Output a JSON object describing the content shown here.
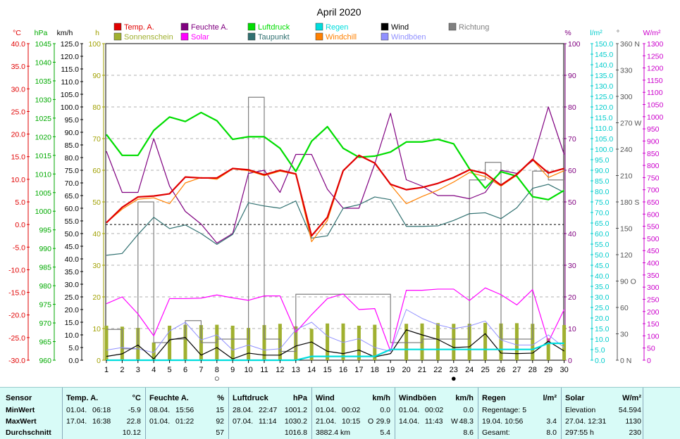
{
  "title": "April 2020",
  "axes": {
    "temp": {
      "unit": "°C",
      "ticks": [
        "40.0",
        "35.0",
        "30.0",
        "25.0",
        "20.0",
        "15.0",
        "10.0",
        "5.0",
        "0.0",
        "-5.0",
        "-10.0",
        "-15.0",
        "-20.0",
        "-25.0",
        "-30.0"
      ],
      "color": "#e00000"
    },
    "hpa": {
      "unit": "hPa",
      "ticks": [
        "1045",
        "1040",
        "1035",
        "1030",
        "1025",
        "1020",
        "1015",
        "1010",
        "1005",
        "1000",
        "995",
        "990",
        "985",
        "980",
        "975",
        "970",
        "965",
        "960"
      ],
      "color": "#00aa00"
    },
    "kmh": {
      "unit": "km/h",
      "ticks": [
        "125.0",
        "120.0",
        "115.0",
        "110.0",
        "105.0",
        "100.0",
        "95.0",
        "90.0",
        "85.0",
        "80.0",
        "75.0",
        "70.0",
        "65.0",
        "60.0",
        "55.0",
        "50.0",
        "45.0",
        "40.0",
        "35.0",
        "30.0",
        "25.0",
        "20.0",
        "15.0",
        "10.0",
        "5.0",
        "0.0"
      ],
      "color": "#000000"
    },
    "h": {
      "unit": "h",
      "ticks": [
        "100",
        "90",
        "80",
        "70",
        "60",
        "50",
        "40",
        "30",
        "20",
        "10",
        "0"
      ],
      "color": "#a0a000"
    },
    "pct": {
      "unit": "%",
      "ticks": [
        "100",
        "90",
        "80",
        "70",
        "60",
        "50",
        "40",
        "30",
        "20",
        "10",
        "0"
      ],
      "color": "#800080"
    },
    "rain": {
      "unit": "l/m²",
      "ticks": [
        "150.0",
        "145.0",
        "140.0",
        "135.0",
        "130.0",
        "125.0",
        "120.0",
        "115.0",
        "110.0",
        "105.0",
        "100.0",
        "95.0",
        "90.0",
        "85.0",
        "80.0",
        "75.0",
        "70.0",
        "65.0",
        "60.0",
        "55.0",
        "50.0",
        "45.0",
        "40.0",
        "35.0",
        "30.0",
        "25.0",
        "20.0",
        "15.0",
        "10.0",
        "5.0",
        "0.0"
      ],
      "color": "#00cccc"
    },
    "deg": {
      "unit": "°",
      "ticks": [
        "360 N",
        "330",
        "300",
        "270 W",
        "240",
        "210",
        "180 S",
        "150",
        "120",
        "90 O",
        "60",
        "30",
        "0 N"
      ],
      "color": "#555555"
    },
    "solar": {
      "unit": "W/m²",
      "ticks": [
        "1300",
        "1250",
        "1200",
        "1150",
        "1100",
        "1050",
        "1000",
        "950",
        "900",
        "850",
        "800",
        "750",
        "700",
        "650",
        "600",
        "550",
        "500",
        "450",
        "400",
        "350",
        "300",
        "250",
        "200",
        "150",
        "100",
        "50",
        "0"
      ],
      "color": "#cc00cc"
    }
  },
  "legend": [
    {
      "label": "Temp. A.",
      "color": "#e00000"
    },
    {
      "label": "Feuchte A.",
      "color": "#800080"
    },
    {
      "label": "Luftdruck",
      "color": "#00dd00"
    },
    {
      "label": "Regen",
      "color": "#00dddd"
    },
    {
      "label": "Wind",
      "color": "#000000"
    },
    {
      "label": "Richtung",
      "color": "#808080"
    },
    {
      "label": "Sonnenschein",
      "color": "#a0b030"
    },
    {
      "label": "Solar",
      "color": "#ff00ff"
    },
    {
      "label": "Taupunkt",
      "color": "#307070"
    },
    {
      "label": "Windchill",
      "color": "#ff8000"
    },
    {
      "label": "Windböen",
      "color": "#9090ff"
    }
  ],
  "chart_data": {
    "type": "line",
    "title": "April 2020",
    "x": [
      1,
      2,
      3,
      4,
      5,
      6,
      7,
      8,
      9,
      10,
      11,
      12,
      13,
      14,
      15,
      16,
      17,
      18,
      19,
      20,
      21,
      22,
      23,
      24,
      25,
      26,
      27,
      28,
      29,
      30
    ],
    "x_ticks": [
      "1",
      "2",
      "3",
      "4",
      "5",
      "6",
      "7",
      "8",
      "9",
      "10",
      "11",
      "12",
      "13",
      "14",
      "15",
      "16",
      "17",
      "18",
      "19",
      "20",
      "21",
      "22",
      "23",
      "24",
      "25",
      "26",
      "27",
      "28",
      "29",
      "30"
    ],
    "moon_markers": [
      {
        "day": 8,
        "symbol": "○"
      },
      {
        "day": 23,
        "symbol": "●"
      }
    ],
    "ylim_temp": [
      -30,
      40
    ],
    "series": [
      {
        "name": "Temp. A.",
        "unit": "°C",
        "color": "#e00000",
        "values": [
          0.4,
          3.8,
          6.1,
          6.3,
          6.8,
          10.5,
          10.3,
          10.3,
          12.4,
          12.1,
          11.0,
          12.0,
          11.2,
          -2.5,
          1.6,
          11.9,
          15.3,
          13.6,
          8.9,
          7.7,
          8.2,
          9.1,
          10.4,
          12.1,
          11.3,
          8.7,
          11.1,
          14.4,
          11.4,
          12.4
        ]
      },
      {
        "name": "Feuchte A.",
        "unit": "%",
        "color": "#800080",
        "values": [
          66,
          53,
          53,
          70,
          55,
          47,
          43,
          37,
          40,
          59,
          60,
          53,
          65,
          65,
          54,
          48,
          48,
          62,
          78,
          57,
          55,
          52,
          52,
          51,
          53,
          60,
          59,
          63,
          80,
          65
        ]
      },
      {
        "name": "Luftdruck",
        "unit": "hPa",
        "color": "#00dd00",
        "values": [
          1020.6,
          1015.0,
          1015.0,
          1021.7,
          1025.3,
          1024.1,
          1026.5,
          1024.3,
          1019.3,
          1020.0,
          1020.0,
          1016.9,
          1010.7,
          1018.8,
          1022.7,
          1016.9,
          1014.5,
          1014.8,
          1015.9,
          1018.6,
          1018.6,
          1019.3,
          1018.1,
          1011.4,
          1006.2,
          1010.6,
          1009.4,
          1003.9,
          1003.1,
          1005.6
        ]
      },
      {
        "name": "Taupunkt",
        "unit": "°C",
        "color": "#307070",
        "values": [
          -6.8,
          -6.4,
          -2.2,
          1.6,
          -0.9,
          -0.1,
          -2.0,
          -4.4,
          -2.2,
          4.8,
          4.1,
          3.6,
          5.2,
          -3.0,
          -2.5,
          3.6,
          4.4,
          6.1,
          5.5,
          -0.4,
          -0.4,
          -0.3,
          0.9,
          2.4,
          2.6,
          1.3,
          3.7,
          8.0,
          8.9,
          7.1
        ]
      },
      {
        "name": "Windchill",
        "unit": "°C",
        "color": "#ff8000",
        "values": [
          0.4,
          3.4,
          5.6,
          5.9,
          4.6,
          9.2,
          10.4,
          10.0,
          12.3,
          11.9,
          10.8,
          11.8,
          11.1,
          -3.8,
          0.9,
          11.8,
          15.3,
          13.5,
          8.8,
          4.6,
          6.2,
          7.6,
          9.4,
          11.5,
          10.6,
          8.5,
          10.9,
          14.3,
          10.4,
          11.9
        ]
      },
      {
        "name": "Wind",
        "unit": "km/h",
        "color": "#000000",
        "values": [
          1.5,
          2.5,
          6.0,
          0.5,
          8.0,
          9.0,
          2.0,
          5.0,
          0.5,
          2.8,
          2.0,
          2.0,
          5.6,
          7.2,
          3.5,
          2.6,
          4.0,
          1.3,
          2.6,
          12.0,
          10.0,
          8.2,
          5.0,
          5.3,
          10.5,
          2.8,
          2.6,
          2.8,
          7.5,
          3.6
        ]
      },
      {
        "name": "Windböen",
        "unit": "km/h",
        "color": "#9090ff",
        "values": [
          4.0,
          5.0,
          4.5,
          3.0,
          11.5,
          15.0,
          8.0,
          10.0,
          4.0,
          6.0,
          4.0,
          4.5,
          12.0,
          15.0,
          9.5,
          7.0,
          8.5,
          5.0,
          3.5,
          20.0,
          16.5,
          14.0,
          12.5,
          13.5,
          15.5,
          8.0,
          6.0,
          6.0,
          10.0,
          5.0
        ]
      },
      {
        "name": "Richtung",
        "unit": "°",
        "color": "#808080",
        "values": [
          35,
          13,
          180,
          20,
          24,
          45,
          20,
          24,
          24,
          299,
          24,
          10,
          75,
          75,
          75,
          75,
          75,
          75,
          20,
          20,
          24,
          24,
          24,
          205,
          225,
          24,
          24,
          215,
          205,
          245
        ]
      },
      {
        "name": "Solar",
        "unit": "W/m²",
        "color": "#ff00ff",
        "values": [
          232,
          260,
          190,
          100,
          253,
          253,
          255,
          268,
          256,
          246,
          264,
          264,
          115,
          187,
          253,
          272,
          208,
          212,
          37,
          287,
          287,
          292,
          292,
          245,
          297,
          269,
          227,
          290,
          75,
          208
        ]
      },
      {
        "name": "Regen",
        "unit": "l/m²",
        "color": "#00dddd",
        "values": [
          0,
          0,
          0,
          0,
          0,
          0,
          0,
          0,
          0,
          0,
          0,
          0,
          0,
          1.8,
          1.8,
          1.8,
          1.8,
          1.8,
          5.1,
          5.1,
          5.1,
          5.1,
          5.1,
          5.1,
          5.1,
          5.1,
          5.1,
          5.1,
          8.0,
          8.0
        ]
      },
      {
        "name": "Sonnenschein",
        "unit": "h",
        "color": "#a0b030",
        "values": [
          10.9,
          10.6,
          10.2,
          5.6,
          10.9,
          11.2,
          11.1,
          11.2,
          10.9,
          10.2,
          11.1,
          11.5,
          10.7,
          9.9,
          11.6,
          11.6,
          10.9,
          11.2,
          0,
          11.5,
          11.6,
          11.7,
          11.5,
          11.5,
          11.8,
          11.6,
          11.7,
          11.5,
          6.9,
          11.1
        ]
      }
    ]
  },
  "stats": {
    "sensor": {
      "header": "Sensor",
      "rows": [
        "MinWert",
        "MaxWert",
        "Durchschnitt"
      ]
    },
    "temp": {
      "header": "Temp. A.",
      "unit": "°C",
      "min_date": "01.04.",
      "min_time": "06:18",
      "min_val": "-5.9",
      "max_date": "17.04.",
      "max_time": "16:38",
      "max_val": "22.8",
      "avg": "10.12"
    },
    "humidity": {
      "header": "Feuchte A.",
      "unit": "%",
      "min_date": "08.04.",
      "min_time": "15:56",
      "min_val": "15",
      "max_date": "01.04.",
      "max_time": "01:22",
      "max_val": "92",
      "avg": "57"
    },
    "pressure": {
      "header": "Luftdruck",
      "unit": "hPa",
      "min_date": "28.04.",
      "min_time": "22:47",
      "min_val": "1001.2",
      "max_date": "07.04.",
      "max_time": "11:14",
      "max_val": "1030.2",
      "avg": "1016.8"
    },
    "wind": {
      "header": "Wind",
      "unit": "km/h",
      "min_date": "01.04.",
      "min_time": "00:02",
      "min_val": "0.0",
      "max_date": "21.04.",
      "max_time": "10:15",
      "max_dir": "O",
      "max_val": "29.9",
      "distance": "3882.4 km",
      "avg": "5.4"
    },
    "gust": {
      "header": "Windböen",
      "unit": "km/h",
      "min_date": "01.04.",
      "min_time": "00:02",
      "min_val": "0.0",
      "max_date": "14.04.",
      "max_time": "11:43",
      "max_dir": "W",
      "max_val": "48.3",
      "avg": "8.6"
    },
    "rain": {
      "header": "Regen",
      "unit": "l/m²",
      "row1_label": "Regentage: 5",
      "row2_label": "19.04.  10:56",
      "row2_val": "3.4",
      "row3_label": "Gesamt:",
      "row3_val": "8.0"
    },
    "solar": {
      "header": "Solar",
      "unit": "W/m²",
      "row1_label": "Elevation",
      "row1_val": "54.594",
      "row2_label": "27.04.  12:31",
      "row2_val": "1130",
      "row3_label": "297:55 h",
      "row3_val": "230"
    }
  }
}
